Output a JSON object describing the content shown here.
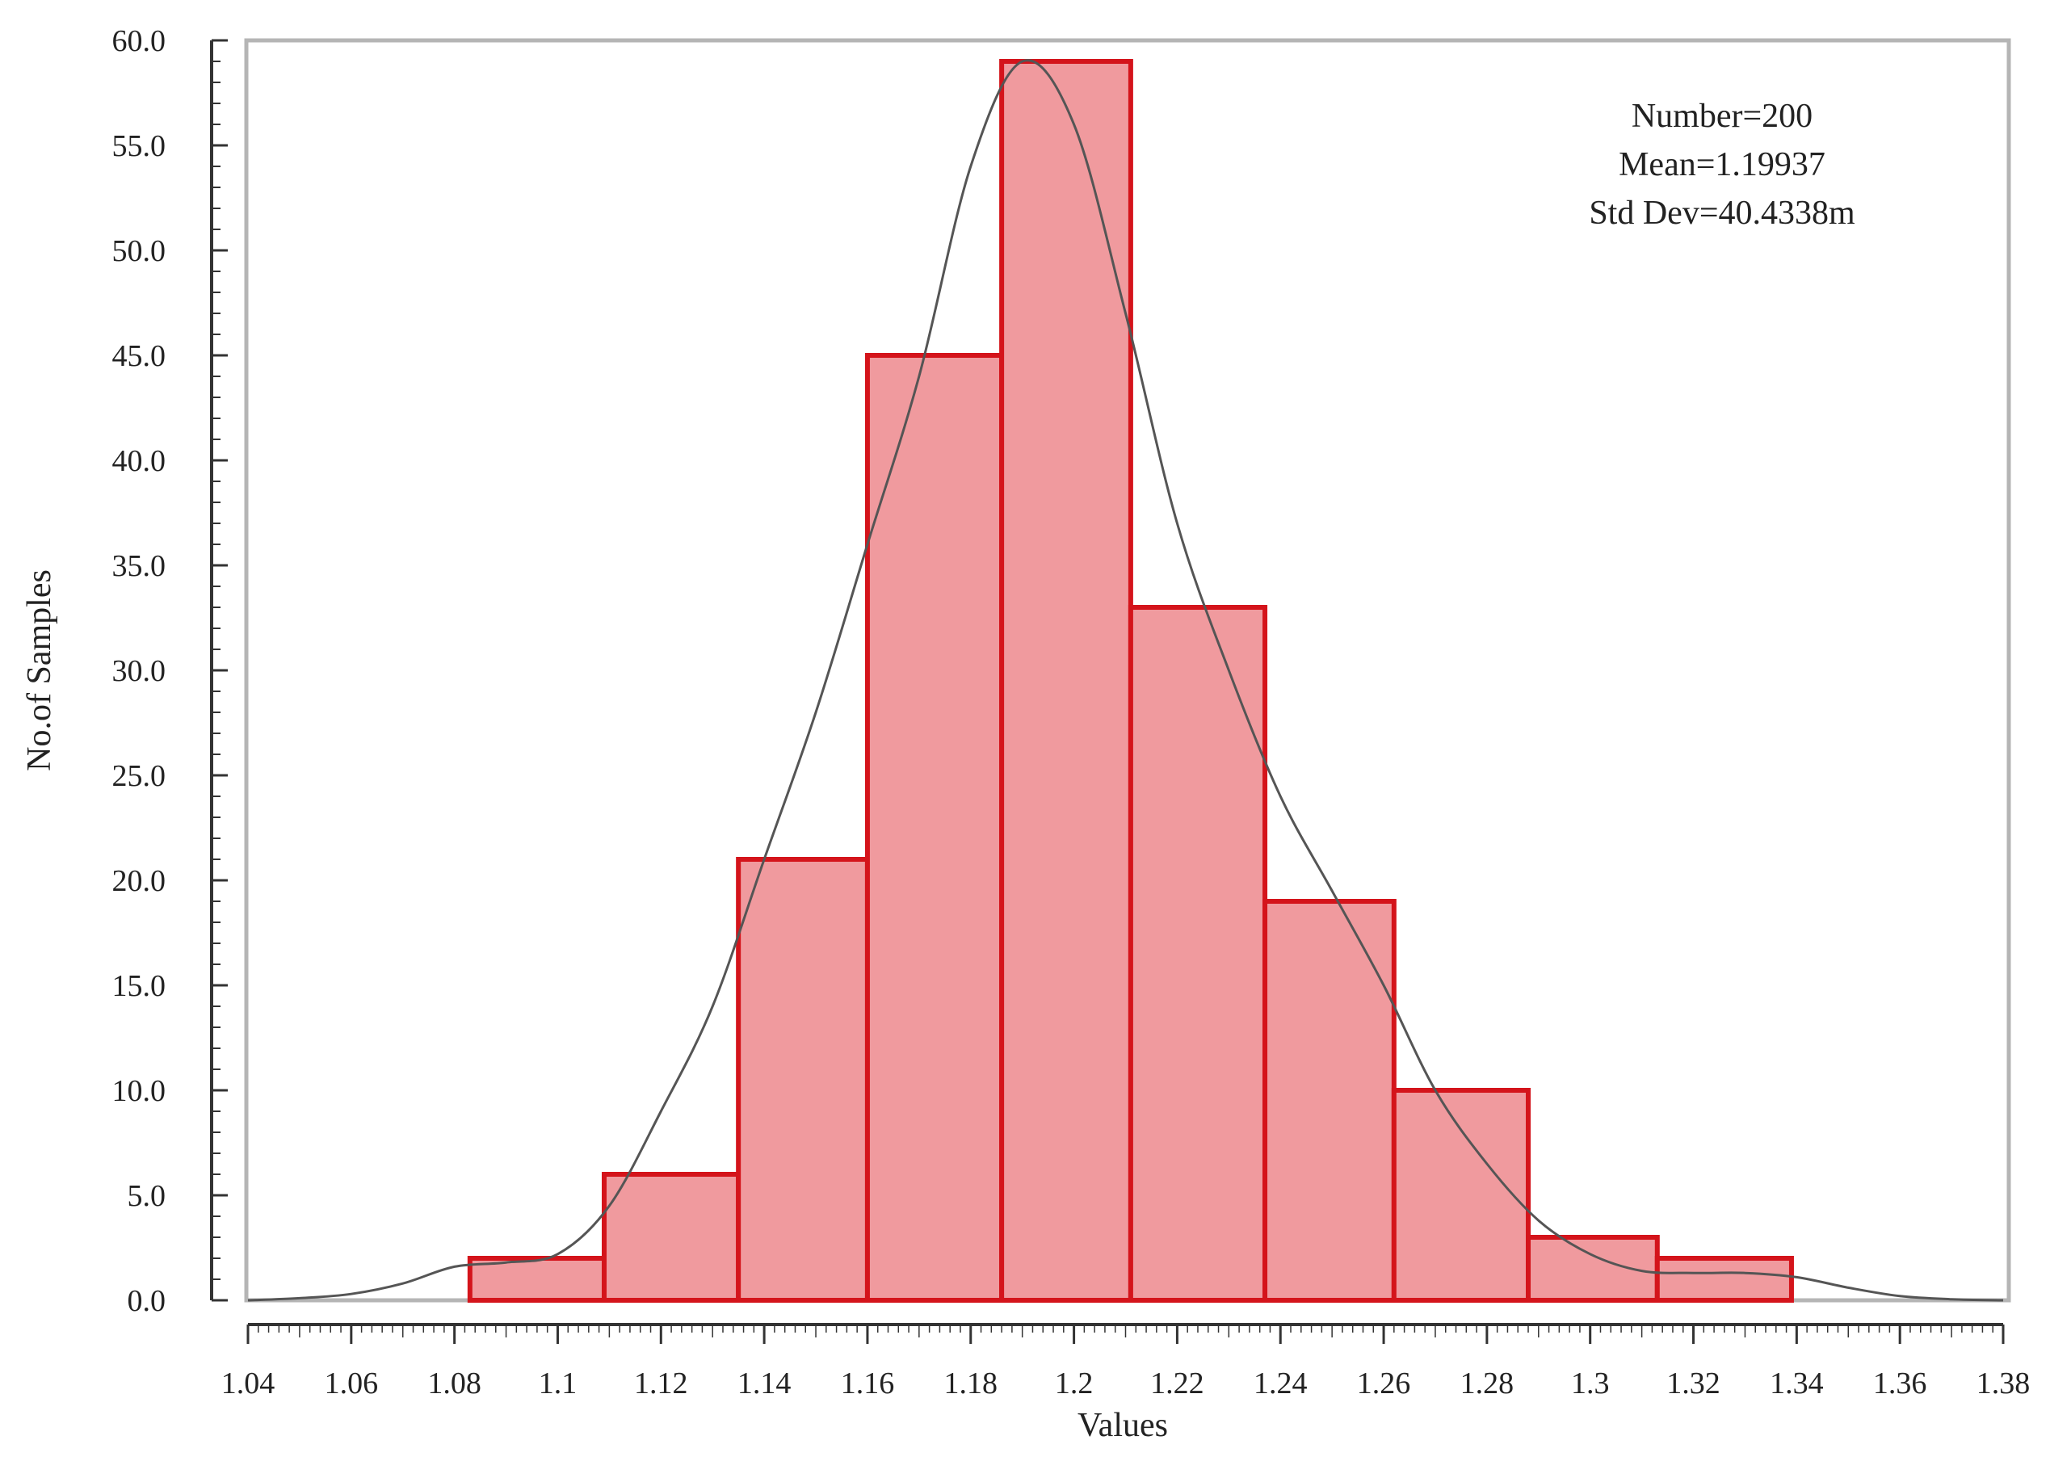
{
  "chart_data": {
    "type": "bar",
    "title": "",
    "xlabel": "Values",
    "ylabel": "No.of Samples",
    "xlim": [
      1.04,
      1.38
    ],
    "ylim": [
      0,
      60
    ],
    "x_ticks": [
      "1.04",
      "1.06",
      "1.08",
      "1.1",
      "1.12",
      "1.14",
      "1.16",
      "1.18",
      "1.2",
      "1.22",
      "1.24",
      "1.26",
      "1.28",
      "1.3",
      "1.32",
      "1.34",
      "1.36",
      "1.38"
    ],
    "y_ticks": [
      "0.0",
      "5.0",
      "10.0",
      "15.0",
      "20.0",
      "25.0",
      "30.0",
      "35.0",
      "40.0",
      "45.0",
      "50.0",
      "55.0",
      "60.0"
    ],
    "bins": [
      {
        "start": 1.083,
        "end": 1.109,
        "count": 2
      },
      {
        "start": 1.109,
        "end": 1.135,
        "count": 6
      },
      {
        "start": 1.135,
        "end": 1.16,
        "count": 21
      },
      {
        "start": 1.16,
        "end": 1.186,
        "count": 45
      },
      {
        "start": 1.186,
        "end": 1.211,
        "count": 59
      },
      {
        "start": 1.211,
        "end": 1.237,
        "count": 33
      },
      {
        "start": 1.237,
        "end": 1.262,
        "count": 19
      },
      {
        "start": 1.262,
        "end": 1.288,
        "count": 10
      },
      {
        "start": 1.288,
        "end": 1.313,
        "count": 3
      },
      {
        "start": 1.313,
        "end": 1.339,
        "count": 2
      }
    ],
    "density_curve": {
      "x": [
        1.04,
        1.05,
        1.06,
        1.07,
        1.08,
        1.09,
        1.1,
        1.11,
        1.12,
        1.13,
        1.14,
        1.15,
        1.16,
        1.17,
        1.18,
        1.19,
        1.2,
        1.21,
        1.22,
        1.23,
        1.24,
        1.25,
        1.26,
        1.27,
        1.28,
        1.29,
        1.3,
        1.31,
        1.32,
        1.33,
        1.34,
        1.35,
        1.36,
        1.37,
        1.38
      ],
      "y": [
        0,
        0.1,
        0.3,
        0.8,
        1.6,
        1.8,
        2.2,
        4.5,
        9,
        14,
        21,
        28,
        36,
        44,
        54,
        59,
        56,
        47,
        37,
        30,
        24,
        19.5,
        15,
        10,
        6.5,
        3.8,
        2.2,
        1.4,
        1.3,
        1.3,
        1.1,
        0.6,
        0.2,
        0.05,
        0
      ]
    },
    "stats": [
      "Number=200",
      "Mean=1.19937",
      "Std Dev=40.4338m"
    ],
    "grid": false,
    "colors": {
      "bar_fill": "#f09a9e",
      "bar_edge": "#d4141b",
      "curve": "#555555",
      "frame": "#b5b5b5"
    }
  }
}
